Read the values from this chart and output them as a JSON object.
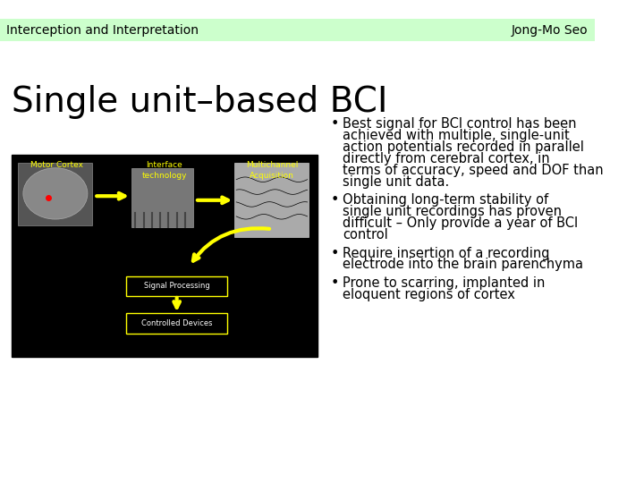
{
  "header_left": "Interception and Interpretation",
  "header_right": "Jong-Mo Seo",
  "header_bg": "#ccffcc",
  "title": "Single unit–based BCI",
  "background_color": "#ffffff",
  "bullet_points": [
    "Best signal for BCI control has been achieved with multiple, single-unit action potentials recorded in parallel directly from cerebral cortex, in terms of accuracy, speed and DOF than single unit data.",
    "Obtaining long-term stability of single unit recordings has proven difficult – Only provide a year of BCI control",
    "Require insertion of a recording electrode into the brain parenchyma",
    "Prone to scarring, implanted in eloquent regions of cortex"
  ],
  "bullet_char": "•",
  "title_fontsize": 28,
  "header_fontsize": 10,
  "bullet_fontsize": 10.5,
  "body_font": "DejaVu Sans",
  "header_font": "DejaVu Sans"
}
